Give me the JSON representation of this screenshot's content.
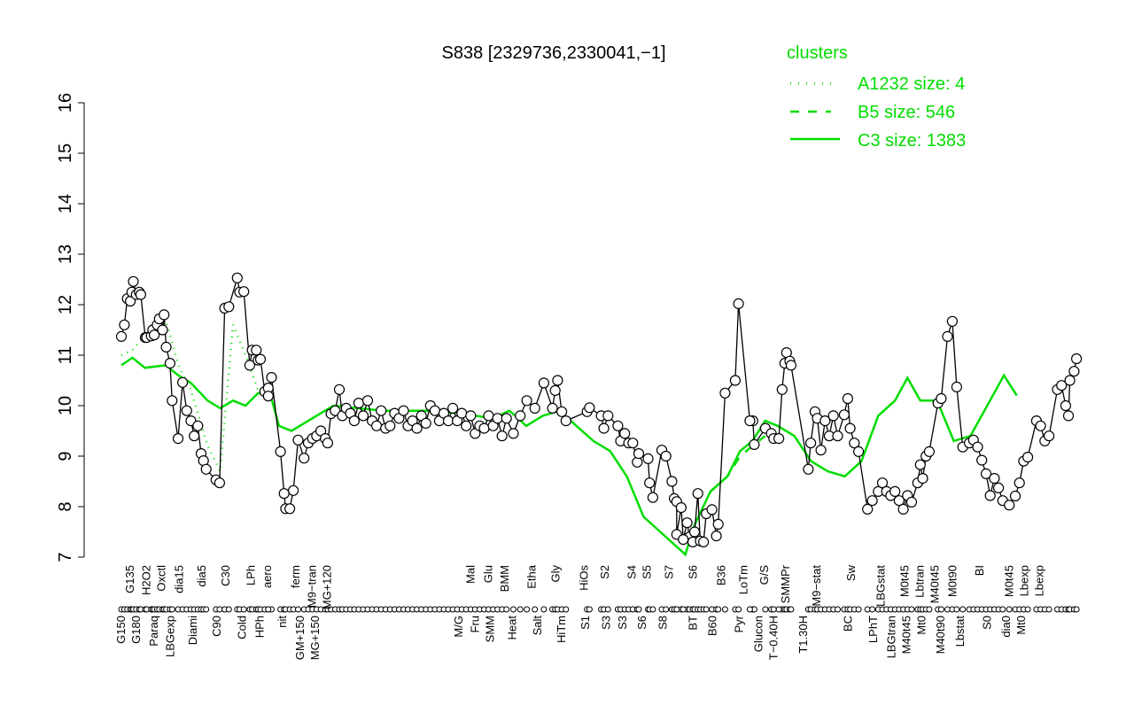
{
  "chart_data": {
    "type": "line",
    "title": "S838 [2329736,2330041,−1]",
    "xlabel": "",
    "ylabel": "",
    "ylim": [
      7,
      16
    ],
    "xlim": [
      0,
      300
    ],
    "yticks": [
      7,
      8,
      9,
      10,
      11,
      12,
      13,
      14,
      15,
      16
    ],
    "grid": false,
    "legend": {
      "title": "clusters",
      "placement": "top-right",
      "color": "#00dd00",
      "entries": [
        {
          "name": "A1232 size: 4",
          "style": "dotted"
        },
        {
          "name": "B5 size: 546",
          "style": "dashed"
        },
        {
          "name": "C3 size: 1383",
          "style": "solid"
        }
      ]
    },
    "points": [
      [
        0,
        11.37
      ],
      [
        1,
        11.6
      ],
      [
        2,
        12.12
      ],
      [
        3,
        12.07
      ],
      [
        3.5,
        12.25
      ],
      [
        4,
        12.46
      ],
      [
        5,
        12.2
      ],
      [
        6,
        12.25
      ],
      [
        6.5,
        12.2
      ],
      [
        8,
        11.35
      ],
      [
        8.5,
        11.35
      ],
      [
        10,
        11.38
      ],
      [
        10.5,
        11.5
      ],
      [
        11,
        11.4
      ],
      [
        12,
        11.6
      ],
      [
        12.7,
        11.72
      ],
      [
        13.8,
        11.5
      ],
      [
        14.3,
        11.8
      ],
      [
        15,
        11.16
      ],
      [
        16.3,
        10.84
      ],
      [
        17,
        10.1
      ],
      [
        19,
        9.35
      ],
      [
        20.5,
        10.46
      ],
      [
        21.9,
        9.9
      ],
      [
        23.3,
        9.7
      ],
      [
        24.4,
        9.4
      ],
      [
        25.6,
        9.6
      ],
      [
        26.7,
        9.05
      ],
      [
        27.5,
        8.91
      ],
      [
        28.4,
        8.74
      ],
      [
        31.7,
        8.53
      ],
      [
        32.9,
        8.47
      ],
      [
        34.6,
        11.93
      ],
      [
        36,
        11.96
      ],
      [
        38.8,
        12.53
      ],
      [
        39.6,
        12.25
      ],
      [
        41,
        12.26
      ],
      [
        43,
        10.8
      ],
      [
        43.8,
        11.1
      ],
      [
        45.2,
        11.1
      ],
      [
        45.8,
        10.9
      ],
      [
        46.6,
        10.92
      ],
      [
        48,
        10.28
      ],
      [
        49.2,
        10.35
      ],
      [
        50.3,
        10.56
      ],
      [
        49.2,
        10.19
      ],
      [
        53.3,
        9.09
      ],
      [
        54.5,
        8.26
      ],
      [
        55,
        7.96
      ],
      [
        56.4,
        7.96
      ],
      [
        57.6,
        8.32
      ],
      [
        59.2,
        9.32
      ],
      [
        61.2,
        8.96
      ],
      [
        62.6,
        9.26
      ],
      [
        64,
        9.35
      ],
      [
        65.4,
        9.4
      ],
      [
        66.8,
        9.5
      ],
      [
        68.3,
        9.35
      ],
      [
        69.1,
        9.26
      ],
      [
        70.2,
        9.84
      ],
      [
        71.6,
        9.9
      ],
      [
        73,
        10.32
      ],
      [
        74,
        9.8
      ],
      [
        75.3,
        9.95
      ],
      [
        76.7,
        9.85
      ],
      [
        78,
        9.7
      ],
      [
        79.5,
        10.05
      ],
      [
        81,
        9.8
      ],
      [
        82.5,
        10.1
      ],
      [
        84,
        9.7
      ],
      [
        85.5,
        9.6
      ],
      [
        87,
        9.9
      ],
      [
        88.5,
        9.55
      ],
      [
        90,
        9.6
      ],
      [
        91.5,
        9.85
      ],
      [
        93,
        9.75
      ],
      [
        94.5,
        9.9
      ],
      [
        96,
        9.6
      ],
      [
        97.5,
        9.7
      ],
      [
        99,
        9.55
      ],
      [
        100.5,
        9.8
      ],
      [
        102,
        9.65
      ],
      [
        103.5,
        10.0
      ],
      [
        105,
        9.9
      ],
      [
        106.5,
        9.7
      ],
      [
        108,
        9.85
      ],
      [
        109.5,
        9.7
      ],
      [
        111,
        9.95
      ],
      [
        112.5,
        9.7
      ],
      [
        114,
        9.85
      ],
      [
        115.5,
        9.6
      ],
      [
        117,
        9.8
      ],
      [
        118.5,
        9.45
      ],
      [
        120,
        9.6
      ],
      [
        121.5,
        9.55
      ],
      [
        123,
        9.8
      ],
      [
        124.5,
        9.6
      ],
      [
        126,
        9.75
      ],
      [
        127.5,
        9.4
      ],
      [
        129,
        9.75
      ],
      [
        131.3,
        9.45
      ],
      [
        133.6,
        9.8
      ],
      [
        135.8,
        10.1
      ],
      [
        138.5,
        9.95
      ],
      [
        141.5,
        10.45
      ],
      [
        144.4,
        9.95
      ],
      [
        145.3,
        10.3
      ],
      [
        146.1,
        10.5
      ],
      [
        147.5,
        9.88
      ],
      [
        148.9,
        9.7
      ],
      [
        156,
        9.88
      ],
      [
        156.8,
        9.96
      ],
      [
        160.7,
        9.8
      ],
      [
        161.6,
        9.55
      ],
      [
        163,
        9.8
      ],
      [
        166.3,
        9.6
      ],
      [
        167.2,
        9.3
      ],
      [
        168.6,
        9.45
      ],
      [
        169.9,
        9.26
      ],
      [
        171.3,
        9.26
      ],
      [
        172.8,
        8.88
      ],
      [
        173.3,
        9.05
      ],
      [
        176.4,
        8.95
      ],
      [
        176.9,
        8.47
      ],
      [
        178,
        8.18
      ],
      [
        181,
        9.12
      ],
      [
        182.4,
        9.0
      ],
      [
        184.4,
        8.5
      ],
      [
        185.2,
        8.16
      ],
      [
        186,
        8.1
      ],
      [
        187.5,
        7.98
      ],
      [
        189.5,
        7.68
      ],
      [
        190.3,
        7.4
      ],
      [
        191.4,
        7.3
      ],
      [
        192,
        7.5
      ],
      [
        193.1,
        8.26
      ],
      [
        193.9,
        7.32
      ],
      [
        195,
        7.3
      ],
      [
        195.9,
        7.86
      ],
      [
        197.8,
        7.94
      ],
      [
        199.3,
        7.42
      ],
      [
        199.9,
        7.65
      ],
      [
        186,
        7.45
      ],
      [
        188.2,
        7.35
      ],
      [
        202.2,
        10.25
      ],
      [
        205.6,
        10.5
      ],
      [
        206.7,
        12.02
      ],
      [
        211.5,
        9.7
      ],
      [
        212,
        9.23
      ],
      [
        215.7,
        9.55
      ],
      [
        217.7,
        9.45
      ],
      [
        218.5,
        9.35
      ],
      [
        221.3,
        10.32
      ],
      [
        222.2,
        10.84
      ],
      [
        222.8,
        11.05
      ],
      [
        223.9,
        10.88
      ],
      [
        224.3,
        10.8
      ],
      [
        210.5,
        9.7
      ],
      [
        220.2,
        9.35
      ],
      [
        230.1,
        8.74
      ],
      [
        230.9,
        9.26
      ],
      [
        232.3,
        9.88
      ],
      [
        233.1,
        9.75
      ],
      [
        234.3,
        9.12
      ],
      [
        235.7,
        9.7
      ],
      [
        237.1,
        9.4
      ],
      [
        238.5,
        9.8
      ],
      [
        239.9,
        9.4
      ],
      [
        242.1,
        9.82
      ],
      [
        243.3,
        10.14
      ],
      [
        244.1,
        9.55
      ],
      [
        245.5,
        9.26
      ],
      [
        246.9,
        9.09
      ],
      [
        249.9,
        7.95
      ],
      [
        251.5,
        8.12
      ],
      [
        253.5,
        8.3
      ],
      [
        254.9,
        8.47
      ],
      [
        256.3,
        8.3
      ],
      [
        257.7,
        8.22
      ],
      [
        259.1,
        8.3
      ],
      [
        260.5,
        8.12
      ],
      [
        261.9,
        7.95
      ],
      [
        263.3,
        8.22
      ],
      [
        264.7,
        8.09
      ],
      [
        266.7,
        8.47
      ],
      [
        267.6,
        8.83
      ],
      [
        268.4,
        8.56
      ],
      [
        269.5,
        9.0
      ],
      [
        270.6,
        9.09
      ],
      [
        273.5,
        10.05
      ],
      [
        274.6,
        10.14
      ],
      [
        276.7,
        11.37
      ],
      [
        278.3,
        11.67
      ],
      [
        279.8,
        10.37
      ],
      [
        281.8,
        9.18
      ],
      [
        284,
        9.26
      ],
      [
        285.4,
        9.32
      ],
      [
        286.8,
        9.18
      ],
      [
        288.2,
        8.92
      ],
      [
        289.6,
        8.65
      ],
      [
        291,
        8.22
      ],
      [
        292.4,
        8.56
      ],
      [
        293.8,
        8.37
      ],
      [
        295.2,
        8.12
      ],
      [
        297.4,
        8.03
      ],
      [
        299.4,
        8.21
      ],
      [
        300.8,
        8.47
      ],
      [
        302.2,
        8.9
      ],
      [
        303.6,
        8.98
      ],
      [
        306.5,
        9.7
      ],
      [
        307.9,
        9.6
      ],
      [
        309.3,
        9.3
      ],
      [
        310.7,
        9.4
      ],
      [
        313.5,
        10.32
      ],
      [
        314.9,
        10.4
      ],
      [
        316.3,
        10.0
      ],
      [
        317.2,
        9.8
      ],
      [
        317.7,
        10.5
      ],
      [
        319.1,
        10.68
      ],
      [
        319.9,
        10.93
      ]
    ],
    "series_C3": [
      [
        0,
        10.8
      ],
      [
        3.7,
        10.95
      ],
      [
        7.9,
        10.75
      ],
      [
        14.9,
        10.8
      ],
      [
        19.1,
        10.6
      ],
      [
        23.3,
        10.45
      ],
      [
        28.9,
        10.1
      ],
      [
        33.1,
        9.95
      ],
      [
        37.4,
        10.1
      ],
      [
        41.6,
        10.0
      ],
      [
        45.8,
        10.25
      ],
      [
        50,
        10.2
      ],
      [
        52.8,
        9.6
      ],
      [
        57,
        9.5
      ],
      [
        62.6,
        9.7
      ],
      [
        71,
        10.0
      ],
      [
        87.9,
        9.9
      ],
      [
        101.9,
        9.9
      ],
      [
        113.2,
        9.85
      ],
      [
        124.4,
        9.75
      ],
      [
        130,
        9.9
      ],
      [
        135.6,
        9.6
      ],
      [
        141.2,
        9.8
      ],
      [
        146.8,
        9.9
      ],
      [
        152.4,
        9.6
      ],
      [
        158.1,
        9.3
      ],
      [
        163.7,
        9.1
      ],
      [
        169.3,
        8.6
      ],
      [
        174.9,
        7.8
      ],
      [
        180.5,
        7.5
      ],
      [
        186.1,
        7.2
      ],
      [
        188.9,
        7.05
      ],
      [
        191.7,
        7.6
      ],
      [
        197.3,
        8.3
      ],
      [
        203,
        8.6
      ],
      [
        207.2,
        9.1
      ],
      [
        211.4,
        9.3
      ],
      [
        215.6,
        9.7
      ],
      [
        219.8,
        9.6
      ],
      [
        225.4,
        9.4
      ],
      [
        231,
        8.9
      ],
      [
        236.6,
        8.7
      ],
      [
        242.3,
        8.6
      ],
      [
        247.9,
        8.9
      ],
      [
        253.5,
        9.8
      ],
      [
        259.1,
        10.1
      ],
      [
        263.3,
        10.55
      ],
      [
        267.6,
        10.1
      ],
      [
        273.2,
        10.1
      ],
      [
        278.8,
        9.3
      ],
      [
        284.4,
        9.4
      ],
      [
        290,
        10.0
      ],
      [
        295.6,
        10.6
      ],
      [
        299.9,
        10.2
      ]
    ],
    "series_A1232": [
      [
        0,
        11.0
      ],
      [
        3.7,
        11.1
      ],
      [
        7.9,
        11.4
      ],
      [
        14.9,
        11.7
      ],
      [
        19.1,
        10.8
      ],
      [
        23.3,
        10.3
      ],
      [
        28.9,
        9.2
      ],
      [
        33.1,
        8.7
      ],
      [
        37.4,
        11.6
      ],
      [
        41.6,
        11.0
      ],
      [
        45.8,
        10.3
      ]
    ],
    "series_B5": [
      [
        197.3,
        8.3
      ],
      [
        203,
        8.6
      ],
      [
        207.2,
        9.0
      ],
      [
        215.6,
        9.4
      ]
    ],
    "tick_labels_top": [
      [
        3,
        "G135"
      ],
      [
        8.5,
        "H2O2"
      ],
      [
        13.5,
        "Oxctl"
      ],
      [
        19.5,
        "dia15"
      ],
      [
        27,
        "dia5"
      ],
      [
        35,
        "C30"
      ],
      [
        43.5,
        "LPh"
      ],
      [
        49,
        "aero"
      ],
      [
        58.5,
        "ferm"
      ],
      [
        64,
        "M9−tran"
      ],
      [
        68.5,
        "MG+120"
      ],
      [
        117,
        "Mal"
      ],
      [
        123,
        "Glu"
      ],
      [
        128.5,
        "BMM"
      ],
      [
        137.5,
        "Etha"
      ],
      [
        145.5,
        "Gly"
      ],
      [
        155,
        "HiOs"
      ],
      [
        162,
        "S2"
      ],
      [
        171,
        "S4"
      ],
      [
        175.5,
        "S5"
      ],
      [
        183.5,
        "S7"
      ],
      [
        191.5,
        "S6"
      ],
      [
        201,
        "B36"
      ],
      [
        208.5,
        "LoTm"
      ],
      [
        215.5,
        "G/S"
      ],
      [
        222.5,
        "SMMPr"
      ],
      [
        233,
        "M9−stat"
      ],
      [
        244.5,
        "Sw"
      ],
      [
        254.5,
        "LBGstat"
      ],
      [
        262.5,
        "M0t45"
      ],
      [
        266.5,
        "Lbtran"
      ],
      [
        270.5,
        "M40t45"
      ],
      [
        278.5,
        "M0t90"
      ],
      [
        287.5,
        "BI"
      ],
      [
        297.5,
        "M0t45"
      ],
      [
        301,
        "Lbexp"
      ],
      [
        303.5,
        "Lbexp"
      ]
    ],
    "tick_labels_bottom": [
      [
        0,
        "G150"
      ],
      [
        5,
        "G180"
      ],
      [
        11,
        "Paraq"
      ],
      [
        16.5,
        "LBGexp"
      ],
      [
        24,
        "Diami"
      ],
      [
        32,
        "C90"
      ],
      [
        40.5,
        "Cold"
      ],
      [
        46.5,
        "HPh"
      ],
      [
        54,
        "nit"
      ],
      [
        60,
        "GM+150"
      ],
      [
        64.5,
        "MG+150"
      ],
      [
        113,
        "M/G"
      ],
      [
        118.5,
        "Fru"
      ],
      [
        123,
        "SMM"
      ],
      [
        131,
        "Heat"
      ],
      [
        139.5,
        "Salt"
      ],
      [
        147.5,
        "HiTm"
      ],
      [
        155.5,
        "S1"
      ],
      [
        162.5,
        "S3"
      ],
      [
        168,
        "S3"
      ],
      [
        174.5,
        "S6"
      ],
      [
        181.5,
        "S8"
      ],
      [
        191.5,
        "BT"
      ],
      [
        198,
        "B60"
      ],
      [
        207,
        "Pyr"
      ],
      [
        213.5,
        "Glucon"
      ],
      [
        218.5,
        "T−0.40H"
      ],
      [
        228.5,
        "T1.30H"
      ],
      [
        243.5,
        "BC"
      ],
      [
        252,
        "LPhT"
      ],
      [
        258,
        "LBGtran"
      ],
      [
        262.5,
        "M40t45"
      ],
      [
        268,
        "Mt0"
      ],
      [
        274.5,
        "M40t90"
      ],
      [
        281,
        "Lbstat"
      ],
      [
        290,
        "S0"
      ],
      [
        296.5,
        "dia0"
      ],
      [
        300.5,
        "Mt0"
      ]
    ]
  }
}
